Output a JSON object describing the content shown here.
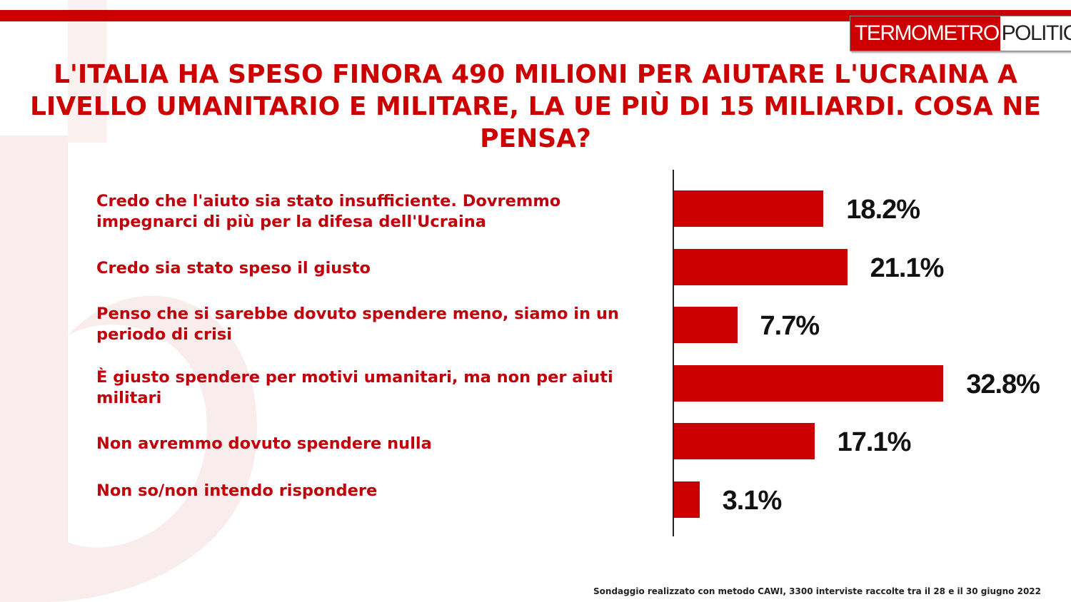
{
  "brand": {
    "logo_left": "TERMOMETRO",
    "logo_right": "POLITICO",
    "accent_color": "#cc0000"
  },
  "chart_data": {
    "type": "bar",
    "orientation": "horizontal",
    "title": "L'ITALIA HA SPESO FINORA 490 MILIONI PER AIUTARE L'UCRAINA A LIVELLO UMANITARIO E MILITARE, LA UE PIÙ DI 15 MILIARDI. COSA NE PENSA?",
    "categories": [
      "Credo che l'aiuto sia stato insufficiente. Dovremmo impegnarci di più per la difesa dell'Ucraina",
      "Credo sia stato speso il giusto",
      "Penso che si sarebbe dovuto spendere meno, siamo in un periodo di crisi",
      "È giusto spendere per motivi umanitari, ma non per aiuti militari",
      "Non avremmo dovuto spendere nulla",
      "Non so/non intendo rispondere"
    ],
    "values": [
      18.2,
      21.1,
      7.7,
      32.8,
      17.1,
      3.1
    ],
    "value_labels": [
      "18.2%",
      "21.1%",
      "7.7%",
      "32.8%",
      "17.1%",
      "3.1%"
    ],
    "bar_color": "#cc0000",
    "grid": false
  },
  "footnote": "Sondaggio realizzato con metodo CAWI, 3300 interviste raccolte tra il 28 e il 30 giugno 2022"
}
